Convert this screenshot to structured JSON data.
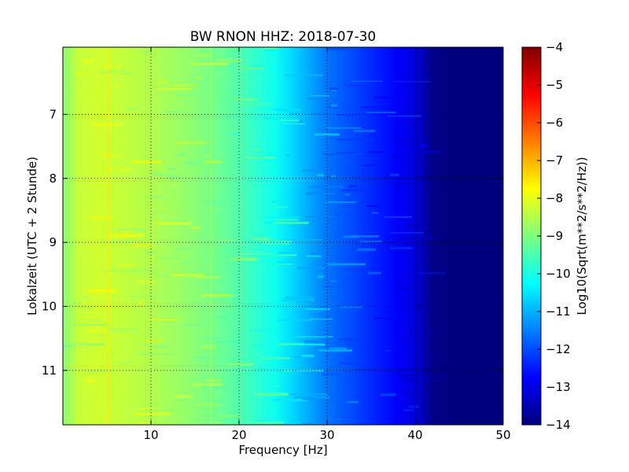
{
  "chart_data": {
    "type": "heatmap",
    "title": "BW RNON HHZ: 2018-07-30",
    "xlabel": "Frequency [Hz]",
    "ylabel": "Lokalzeit (UTC + 2 Stunde)",
    "xlim": [
      0,
      50
    ],
    "ylim": [
      5.95,
      11.85
    ],
    "y_inverted": true,
    "x_ticks": [
      10,
      20,
      30,
      40,
      50
    ],
    "y_ticks": [
      7,
      8,
      9,
      10,
      11
    ],
    "grid": true,
    "colormap": "jet",
    "colorbar": {
      "label": "Log10(Sqrt(m**2/s**2/Hz))",
      "range": [
        -14,
        -4
      ],
      "ticks": [
        -4,
        -5,
        -6,
        -7,
        -8,
        -9,
        -10,
        -11,
        -12,
        -13,
        -14
      ]
    },
    "profile": {
      "frequency_hz": [
        0,
        2,
        4,
        6,
        8,
        10,
        12,
        14,
        16,
        18,
        20,
        22,
        24,
        26,
        28,
        30,
        32,
        34,
        36,
        38,
        40,
        41,
        42,
        44,
        46,
        48,
        50
      ],
      "log10_amplitude": [
        -8.9,
        -8.3,
        -8.2,
        -8.3,
        -8.4,
        -8.5,
        -8.65,
        -8.8,
        -9.0,
        -9.2,
        -9.45,
        -9.8,
        -10.1,
        -10.6,
        -11.1,
        -11.6,
        -11.9,
        -12.2,
        -12.5,
        -12.8,
        -13.1,
        -13.5,
        -13.9,
        -14.0,
        -14.0,
        -14.0,
        -14.0
      ]
    },
    "colors": {
      "jet": [
        "#00007f",
        "#0000ff",
        "#007fff",
        "#00ffff",
        "#7fff7f",
        "#ffff00",
        "#ff7f00",
        "#ff0000",
        "#7f0000"
      ]
    }
  }
}
